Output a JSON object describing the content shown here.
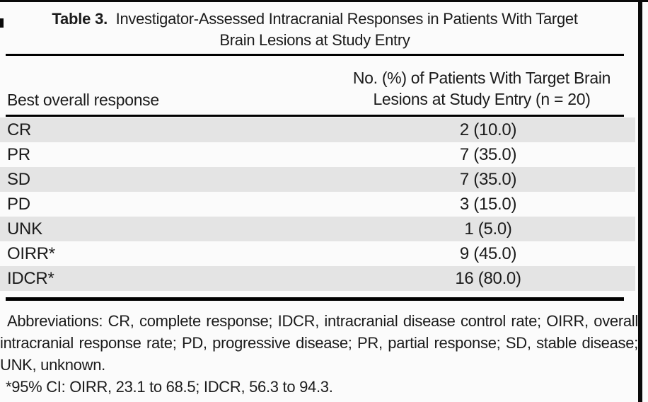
{
  "title": {
    "label": "Table 3.",
    "line1": "Investigator-Assessed Intracranial Responses in Patients With Target",
    "line2": "Brain Lesions at Study Entry"
  },
  "table": {
    "columns": {
      "response_header": "Best overall response",
      "value_header_line1": "No. (%) of Patients With Target Brain",
      "value_header_line2": "Lesions at Study Entry (n = 20)"
    },
    "rows": [
      {
        "label": "CR",
        "value": "2 (10.0)"
      },
      {
        "label": "PR",
        "value": "7 (35.0)"
      },
      {
        "label": "SD",
        "value": "7 (35.0)"
      },
      {
        "label": "PD",
        "value": "3 (15.0)"
      },
      {
        "label": "UNK",
        "value": "1 (5.0)"
      },
      {
        "label": "OIRR*",
        "value": "9 (45.0)"
      },
      {
        "label": "IDCR*",
        "value": "16 (80.0)"
      }
    ]
  },
  "footnotes": {
    "abbreviations": "Abbreviations: CR, complete response; IDCR, intracranial disease control rate; OIRR, overall intracranial response rate; PD, progressive disease; PR, partial response; SD, stable disease; UNK, unknown.",
    "ci_note": "*95% CI: OIRR, 23.1 to 68.5; IDCR, 56.3 to 94.3."
  },
  "colors": {
    "row_shading": "#e4e4e4",
    "rule": "#000000",
    "text": "#1b1b1b",
    "background": "#fbfbfb"
  }
}
